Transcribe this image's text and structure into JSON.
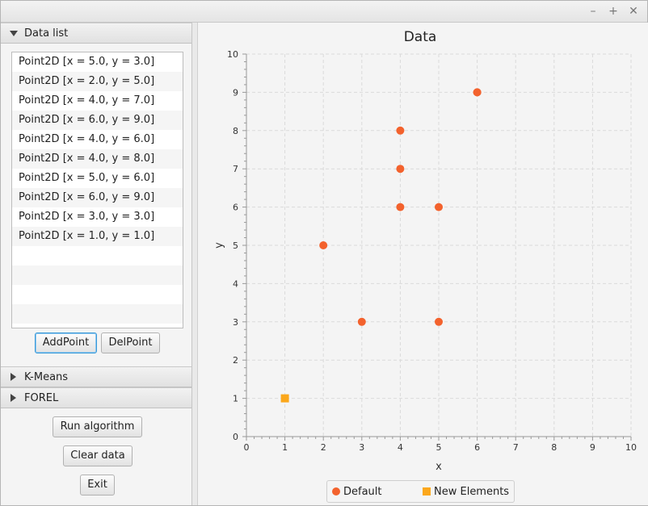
{
  "window": {
    "buttons": {
      "minimize": "–",
      "maximize": "+",
      "close": "✕"
    }
  },
  "left": {
    "data_list": {
      "title": "Data list",
      "items": [
        "Point2D [x = 5.0, y = 3.0]",
        "Point2D [x = 2.0, y = 5.0]",
        "Point2D [x = 4.0, y = 7.0]",
        "Point2D [x = 6.0, y = 9.0]",
        "Point2D [x = 4.0, y = 6.0]",
        "Point2D [x = 4.0, y = 8.0]",
        "Point2D [x = 5.0, y = 6.0]",
        "Point2D [x = 6.0, y = 9.0]",
        "Point2D [x = 3.0, y = 3.0]",
        "Point2D [x = 1.0, y = 1.0]"
      ],
      "add_label": "AddPoint",
      "del_label": "DelPoint"
    },
    "kmeans": {
      "title": "K-Means"
    },
    "forel": {
      "title": "FOREL"
    },
    "run_label": "Run algorithm",
    "clear_label": "Clear data",
    "exit_label": "Exit"
  },
  "colors": {
    "default_series": "#f3622d",
    "new_series": "#fba71b",
    "accent": "#3a9ad9"
  },
  "chart_data": {
    "type": "scatter",
    "title": "Data",
    "xlabel": "x",
    "ylabel": "y",
    "xlim": [
      0,
      10
    ],
    "ylim": [
      0,
      10
    ],
    "xticks": [
      0,
      1,
      2,
      3,
      4,
      5,
      6,
      7,
      8,
      9,
      10
    ],
    "yticks": [
      0,
      1,
      2,
      3,
      4,
      5,
      6,
      7,
      8,
      9,
      10
    ],
    "grid": true,
    "legend_position": "bottom",
    "series": [
      {
        "name": "Default",
        "marker": "circle",
        "color": "#f3622d",
        "points": [
          [
            5,
            3
          ],
          [
            2,
            5
          ],
          [
            4,
            7
          ],
          [
            6,
            9
          ],
          [
            4,
            6
          ],
          [
            4,
            8
          ],
          [
            5,
            6
          ],
          [
            6,
            9
          ],
          [
            3,
            3
          ]
        ]
      },
      {
        "name": "New Elements",
        "marker": "square",
        "color": "#fba71b",
        "points": [
          [
            1,
            1
          ]
        ]
      }
    ]
  }
}
